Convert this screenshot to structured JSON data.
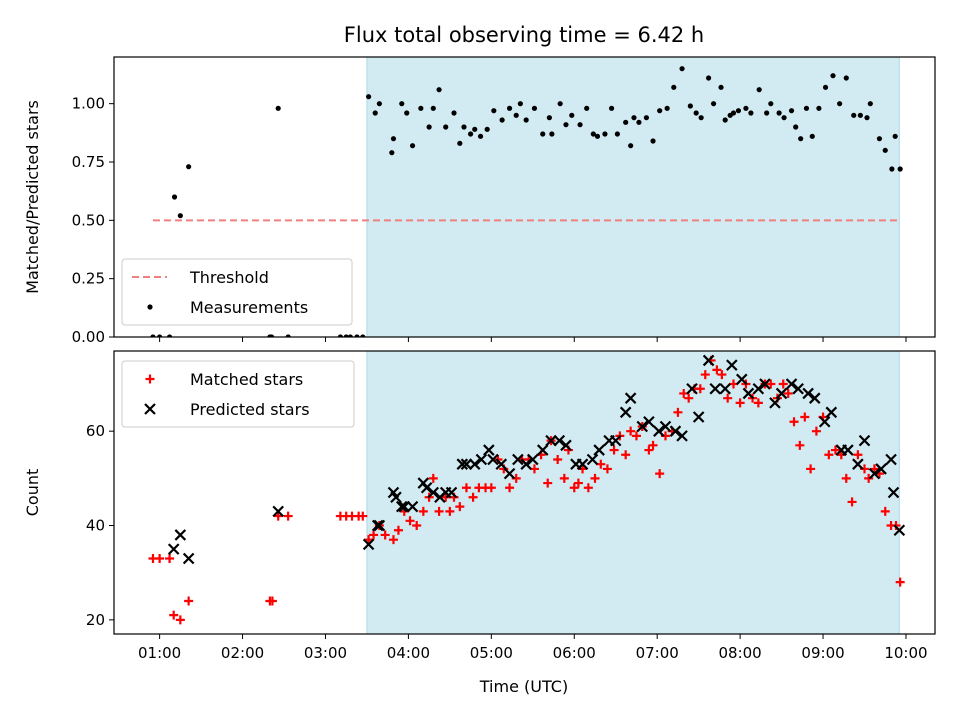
{
  "figure": {
    "title": "Flux total observing time = 6.42 h",
    "xlabel": "Time (UTC)"
  },
  "colors": {
    "shade": "#add8e6",
    "threshold": "#f08080",
    "matched": "#ff0000",
    "predicted": "#000000",
    "measurement": "#000000"
  },
  "chart_data": [
    {
      "type": "scatter",
      "name": "ratio-panel",
      "ylabel": "Matched/Predicted stars",
      "xlim": [
        0.45,
        10.35
      ],
      "ylim": [
        0,
        1.2
      ],
      "yticks": [
        0,
        0.25,
        0.5,
        0.75,
        1.0
      ],
      "ytick_labels": [
        "0.00",
        "0.25",
        "0.50",
        "0.75",
        "1.00"
      ],
      "shaded_interval": [
        3.5,
        9.92
      ],
      "threshold": {
        "name": "Threshold",
        "value": 0.5,
        "x_range": [
          0.92,
          9.92
        ]
      },
      "legend": {
        "placement": "lower-left",
        "entries": [
          "Threshold",
          "Measurements"
        ]
      },
      "series": [
        {
          "name": "Measurements",
          "x": [
            0.92,
            1.0,
            1.12,
            1.18,
            1.25,
            1.35,
            2.33,
            2.35,
            2.43,
            2.55,
            3.18,
            3.25,
            3.3,
            3.38,
            3.45,
            3.52,
            3.6,
            3.65,
            3.8,
            3.82,
            3.92,
            3.98,
            4.05,
            4.15,
            4.25,
            4.3,
            4.37,
            4.45,
            4.55,
            4.62,
            4.67,
            4.75,
            4.8,
            4.87,
            4.95,
            5.03,
            5.13,
            5.22,
            5.3,
            5.35,
            5.42,
            5.52,
            5.62,
            5.7,
            5.73,
            5.83,
            5.9,
            5.97,
            6.07,
            6.15,
            6.23,
            6.28,
            6.37,
            6.45,
            6.52,
            6.62,
            6.68,
            6.72,
            6.78,
            6.87,
            6.95,
            7.03,
            7.12,
            7.2,
            7.3,
            7.4,
            7.47,
            7.53,
            7.62,
            7.68,
            7.77,
            7.82,
            7.88,
            7.92,
            7.98,
            8.07,
            8.13,
            8.23,
            8.32,
            8.37,
            8.47,
            8.53,
            8.62,
            8.67,
            8.73,
            8.8,
            8.87,
            8.95,
            9.03,
            9.12,
            9.2,
            9.28,
            9.37,
            9.45,
            9.53,
            9.57,
            9.68,
            9.75,
            9.83,
            9.87,
            9.93
          ],
          "y": [
            0,
            0,
            0,
            0.6,
            0.52,
            0.73,
            0,
            0,
            0.98,
            0,
            0,
            0,
            0,
            0,
            0,
            1.03,
            0.96,
            1.0,
            0.79,
            0.85,
            1.0,
            0.96,
            0.82,
            0.98,
            0.9,
            0.98,
            1.06,
            0.9,
            0.96,
            0.83,
            0.9,
            0.87,
            0.89,
            0.86,
            0.89,
            0.97,
            0.93,
            0.98,
            0.95,
            1.0,
            0.93,
            0.98,
            0.87,
            0.94,
            0.87,
            1.0,
            0.91,
            0.95,
            0.91,
            0.98,
            0.87,
            0.86,
            0.87,
            0.98,
            0.87,
            0.92,
            0.82,
            0.94,
            0.92,
            0.94,
            0.84,
            0.97,
            0.98,
            1.07,
            1.15,
            0.99,
            0.96,
            0.94,
            1.11,
            1.0,
            1.07,
            0.93,
            0.95,
            0.96,
            0.97,
            0.98,
            0.96,
            1.06,
            0.96,
            1.0,
            0.96,
            0.94,
            0.97,
            0.9,
            0.85,
            0.98,
            0.86,
            0.98,
            1.07,
            1.12,
            1.0,
            1.11,
            0.95,
            0.95,
            0.94,
            1.0,
            0.85,
            0.8,
            0.72,
            0.86,
            0.72
          ]
        }
      ]
    },
    {
      "type": "scatter",
      "name": "count-panel",
      "ylabel": "Count",
      "xlim": [
        0.45,
        10.35
      ],
      "ylim": [
        17,
        77
      ],
      "yticks": [
        20,
        40,
        60
      ],
      "ytick_labels": [
        "20",
        "40",
        "60"
      ],
      "xticks": [
        1,
        2,
        3,
        4,
        5,
        6,
        7,
        8,
        9,
        10
      ],
      "xtick_labels": [
        "01:00",
        "02:00",
        "03:00",
        "04:00",
        "05:00",
        "06:00",
        "07:00",
        "08:00",
        "09:00",
        "10:00"
      ],
      "shaded_interval": [
        3.5,
        9.92
      ],
      "legend": {
        "placement": "upper-left",
        "entries": [
          "Matched stars",
          "Predicted stars"
        ]
      },
      "series": [
        {
          "name": "Matched stars",
          "marker": "plus",
          "x": [
            0.92,
            1.0,
            1.12,
            1.17,
            1.25,
            1.35,
            2.33,
            2.36,
            2.43,
            2.55,
            3.18,
            3.25,
            3.32,
            3.4,
            3.45,
            3.52,
            3.58,
            3.65,
            3.72,
            3.82,
            3.88,
            3.95,
            4.02,
            4.1,
            4.18,
            4.25,
            4.3,
            4.37,
            4.45,
            4.5,
            4.55,
            4.62,
            4.7,
            4.78,
            4.85,
            4.93,
            5.0,
            5.08,
            5.15,
            5.22,
            5.3,
            5.37,
            5.45,
            5.52,
            5.6,
            5.68,
            5.72,
            5.8,
            5.88,
            5.93,
            6.0,
            6.05,
            6.1,
            6.17,
            6.25,
            6.32,
            6.4,
            6.48,
            6.55,
            6.62,
            6.68,
            6.75,
            6.82,
            6.9,
            6.95,
            7.03,
            7.1,
            7.18,
            7.25,
            7.32,
            7.38,
            7.45,
            7.52,
            7.58,
            7.65,
            7.72,
            7.78,
            7.85,
            7.92,
            8.0,
            8.07,
            8.15,
            8.22,
            8.3,
            8.37,
            8.45,
            8.52,
            8.58,
            8.65,
            8.72,
            8.78,
            8.85,
            8.92,
            9.0,
            9.07,
            9.15,
            9.22,
            9.28,
            9.35,
            9.42,
            9.5,
            9.55,
            9.62,
            9.68,
            9.75,
            9.82,
            9.88,
            9.93
          ],
          "y": [
            33,
            33,
            33,
            21,
            20,
            24,
            24,
            24,
            42,
            42,
            42,
            42,
            42,
            42,
            42,
            37,
            38,
            40,
            38,
            37,
            39,
            43,
            41,
            40,
            43,
            46,
            50,
            43,
            46,
            43,
            46,
            44,
            48,
            46,
            48,
            48,
            48,
            54,
            52,
            48,
            50,
            54,
            54,
            52,
            55,
            49,
            58,
            54,
            50,
            56,
            48,
            49,
            52,
            48,
            50,
            53,
            52,
            56,
            59,
            55,
            60,
            59,
            61,
            56,
            57,
            51,
            59,
            60,
            64,
            68,
            67,
            69,
            69,
            72,
            75,
            73,
            72,
            67,
            70,
            66,
            70,
            67,
            66,
            70,
            70,
            67,
            70,
            68,
            62,
            57,
            63,
            52,
            60,
            63,
            55,
            56,
            55,
            50,
            45,
            55,
            52,
            50,
            52,
            51,
            43,
            40,
            40,
            28
          ]
        },
        {
          "name": "Predicted stars",
          "marker": "cross",
          "x": [
            1.17,
            1.25,
            1.35,
            2.43,
            3.52,
            3.65,
            3.82,
            3.95,
            4.05,
            4.18,
            4.3,
            4.45,
            4.65,
            4.88,
            5.02,
            5.22,
            5.42,
            5.62,
            5.82,
            6.02,
            6.22,
            6.42,
            6.62,
            6.82,
            7.02,
            7.22,
            7.42,
            7.62,
            7.82,
            8.02,
            8.22,
            8.42,
            8.62,
            8.82,
            9.02,
            9.22,
            9.42,
            9.62,
            9.82,
            9.92,
            3.63,
            3.85,
            3.92,
            4.22,
            4.38,
            4.52,
            4.7,
            4.8,
            4.97,
            5.12,
            5.32,
            5.5,
            5.72,
            5.9,
            6.1,
            6.3,
            6.5,
            6.68,
            6.9,
            7.1,
            7.3,
            7.5,
            7.7,
            7.9,
            8.1,
            8.3,
            8.5,
            8.7,
            8.9,
            9.1,
            9.3,
            9.5,
            9.7,
            9.85
          ],
          "y": [
            35,
            38,
            33,
            43,
            36,
            40,
            47,
            44,
            44,
            49,
            47,
            47,
            53,
            54,
            54,
            51,
            53,
            56,
            58,
            53,
            54,
            58,
            64,
            61,
            60,
            60,
            69,
            75,
            69,
            71,
            69,
            66,
            70,
            68,
            62,
            56,
            53,
            51,
            54,
            39,
            40,
            46,
            44,
            48,
            46,
            47,
            53,
            53,
            56,
            53,
            54,
            54,
            58,
            57,
            53,
            56,
            58,
            67,
            62,
            61,
            59,
            63,
            69,
            74,
            68,
            70,
            68,
            69,
            67,
            64,
            56,
            58,
            52,
            47
          ]
        }
      ]
    }
  ]
}
